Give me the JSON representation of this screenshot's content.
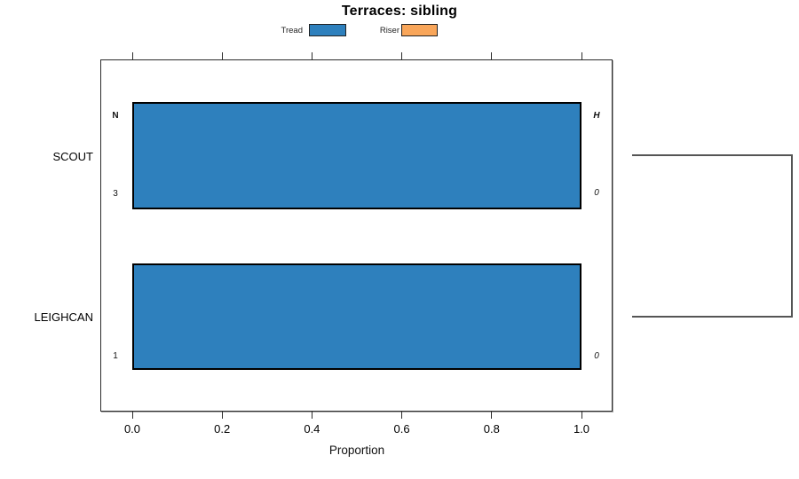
{
  "title": "Terraces: sibling",
  "legend": {
    "items": [
      {
        "label": "Tread",
        "color": "#2e80bd"
      },
      {
        "label": "Riser",
        "color": "#f9a65a"
      }
    ]
  },
  "chart_data": {
    "type": "bar",
    "orientation": "horizontal",
    "title": "Terraces: sibling",
    "xlabel": "Proportion",
    "xlim": [
      0,
      1
    ],
    "xticks": [
      "0.0",
      "0.2",
      "0.4",
      "0.6",
      "0.8",
      "1.0"
    ],
    "categories": [
      "SCOUT",
      "LEIGHCAN"
    ],
    "series": [
      {
        "name": "Tread",
        "color": "#2e80bd",
        "values": [
          1.0,
          1.0
        ]
      },
      {
        "name": "Riser",
        "color": "#f9a65a",
        "values": [
          0.0,
          0.0
        ]
      }
    ],
    "row_annotations": [
      {
        "left_top": "N",
        "left_bottom": "3",
        "right_top": "H",
        "right_bottom": "0"
      },
      {
        "left_top": "",
        "left_bottom": "1",
        "right_top": "",
        "right_bottom": "0"
      }
    ],
    "legend_position": "top",
    "grid": false,
    "right_dendrogram_bracket": true,
    "bar_border_color": "#000000"
  }
}
